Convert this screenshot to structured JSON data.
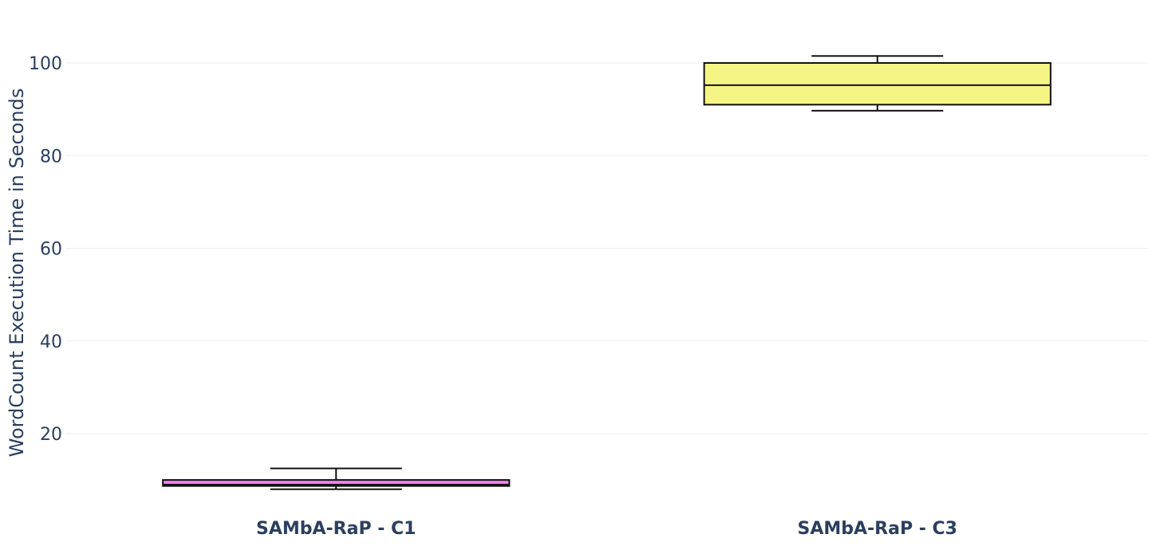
{
  "chart_data": {
    "type": "box",
    "ylabel": "WordCount Execution Time in Seconds",
    "xlabel": "",
    "ylim": [
      4,
      110
    ],
    "yticks": [
      20,
      40,
      60,
      80,
      100
    ],
    "grid": true,
    "legend": "none",
    "categories": [
      "SAMbA-RaP - C1",
      "SAMbA-RaP - C3"
    ],
    "boxes": [
      {
        "category": "SAMbA-RaP - C1",
        "min": 8.0,
        "q1": 8.7,
        "median": 9.0,
        "q3": 10.0,
        "max": 12.5,
        "color": "#f07ff0"
      },
      {
        "category": "SAMbA-RaP - C3",
        "min": 89.7,
        "q1": 91.0,
        "median": 95.2,
        "q3": 100.0,
        "max": 101.5,
        "color": "#f5f585"
      }
    ]
  }
}
